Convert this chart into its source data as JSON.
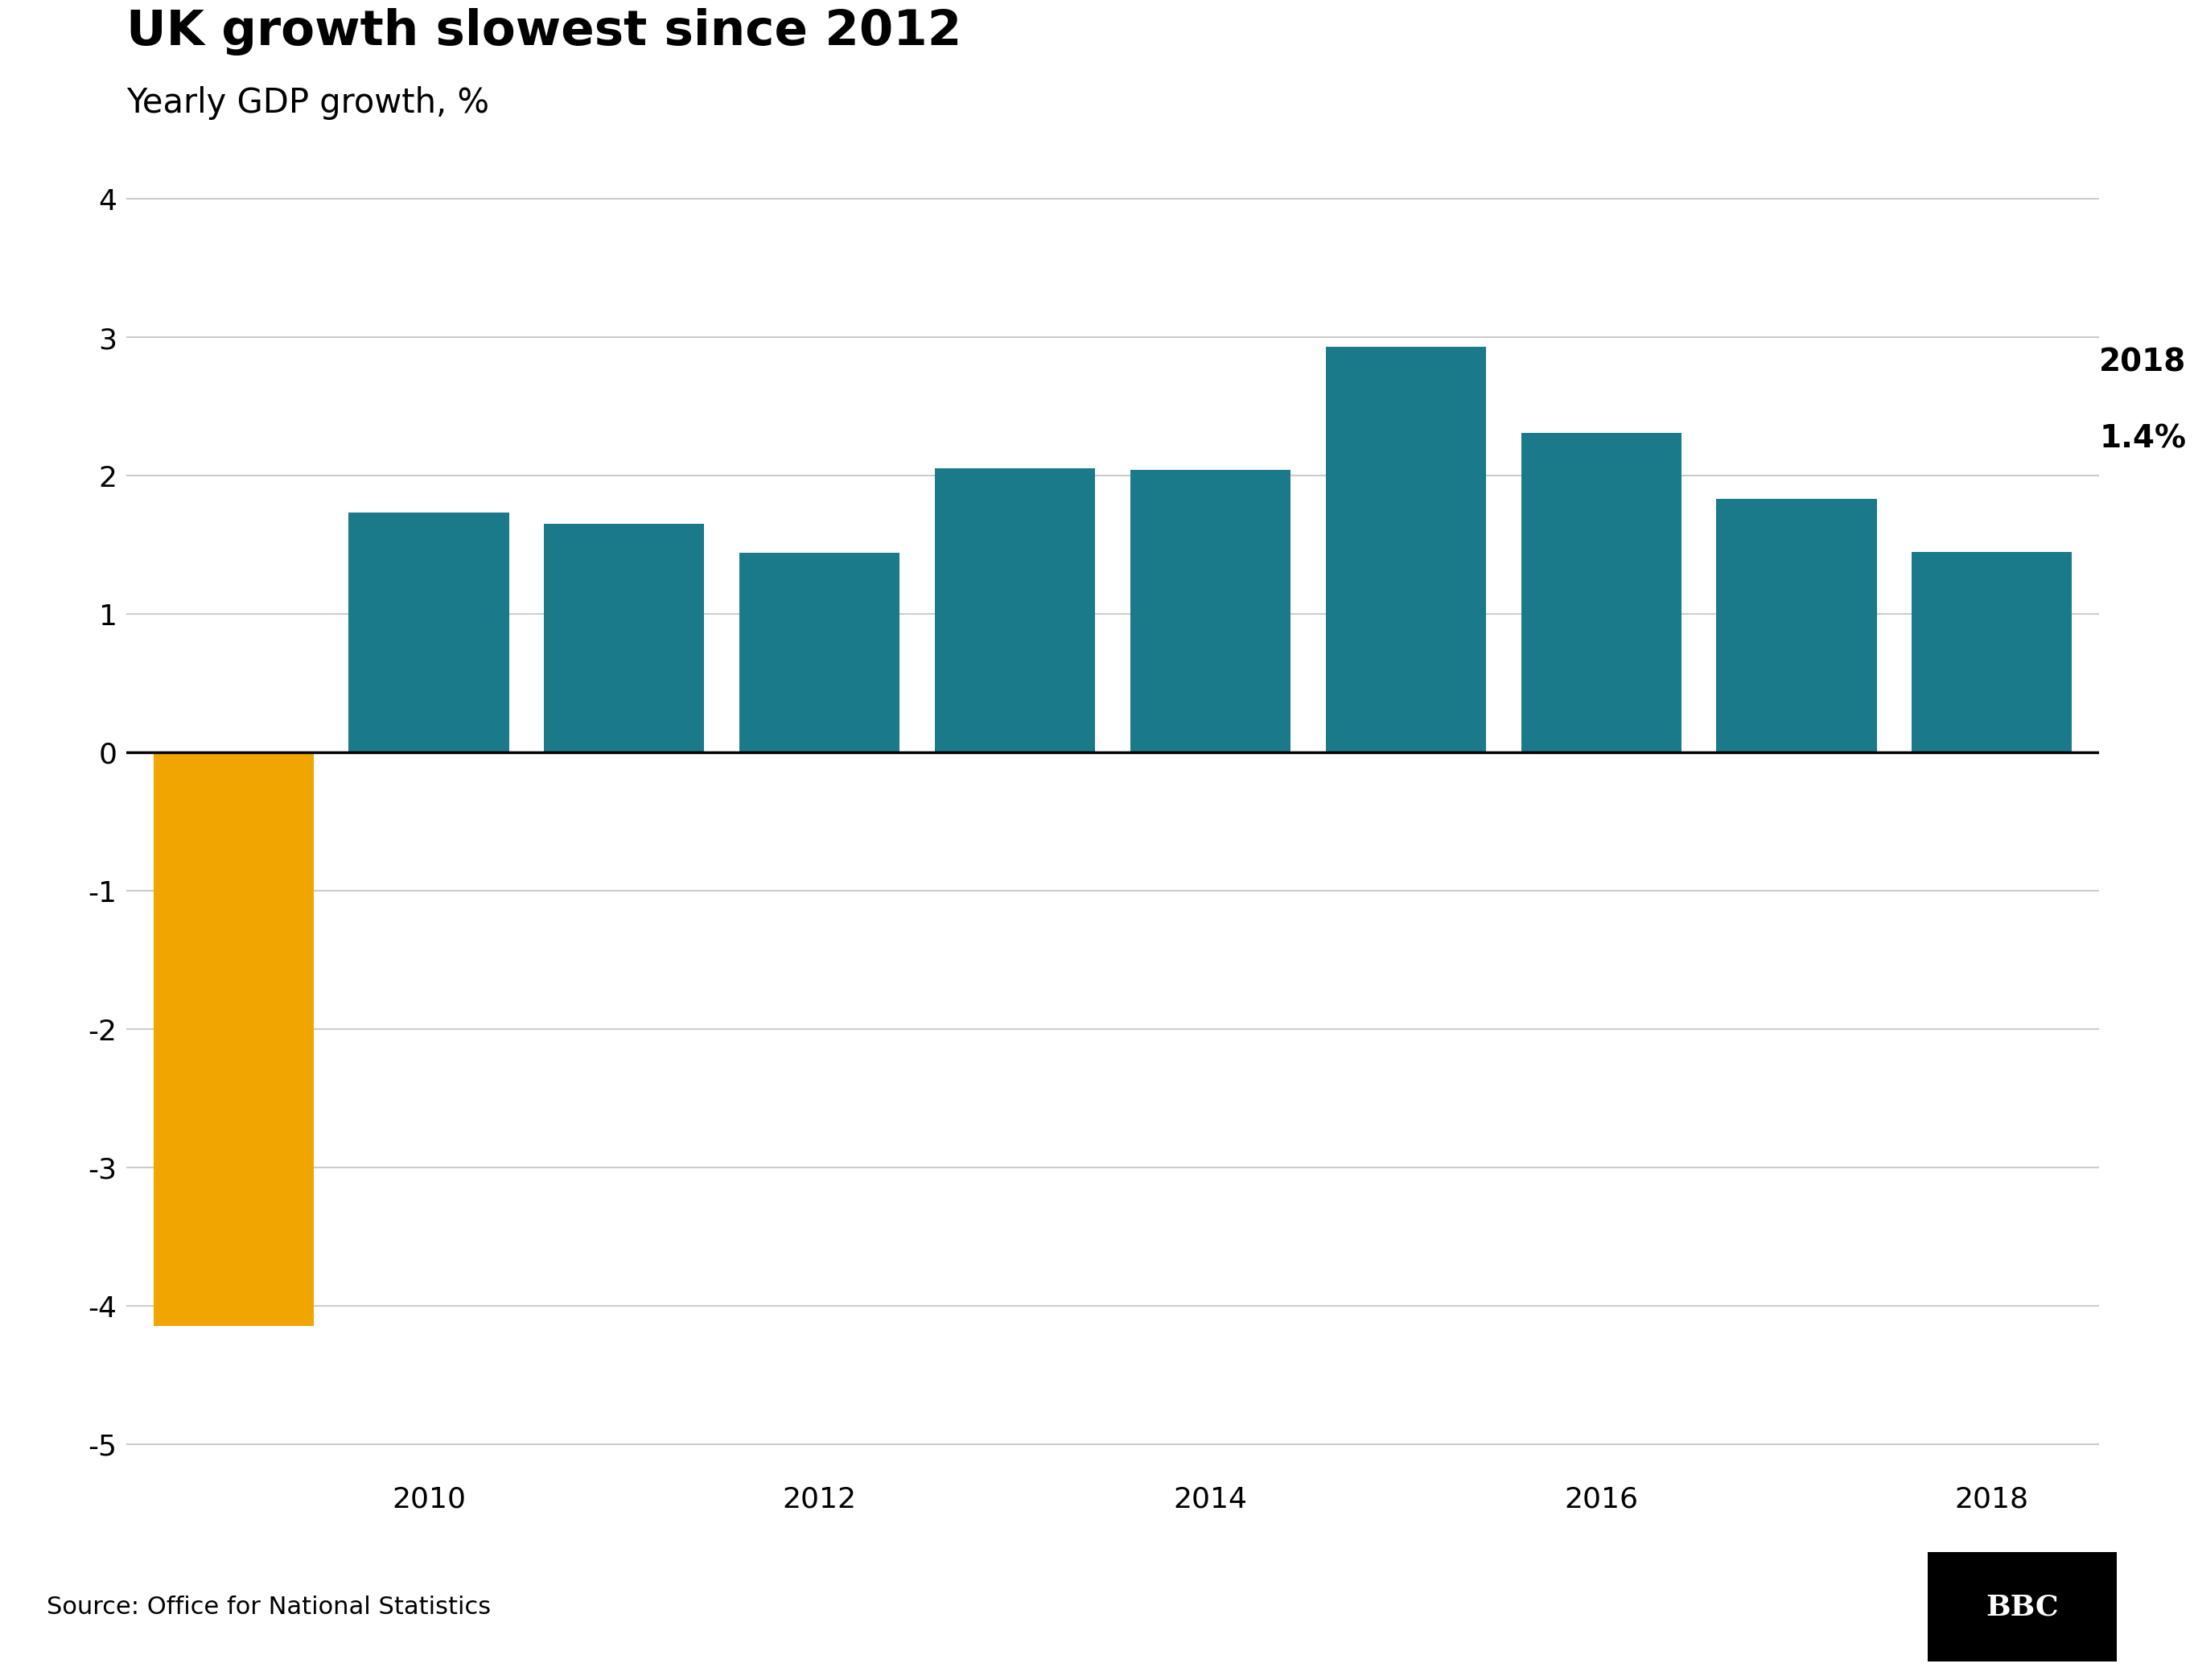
{
  "title": "UK growth slowest since 2012",
  "subtitle": "Yearly GDP growth, %",
  "years": [
    2009,
    2010,
    2011,
    2012,
    2013,
    2014,
    2015,
    2016,
    2017,
    2018
  ],
  "values": [
    -4.15,
    1.73,
    1.65,
    1.44,
    2.05,
    2.04,
    2.93,
    2.31,
    1.83,
    1.45
  ],
  "bar_colors": [
    "#f0a500",
    "#1a7a8a",
    "#1a7a8a",
    "#1a7a8a",
    "#1a7a8a",
    "#1a7a8a",
    "#1a7a8a",
    "#1a7a8a",
    "#1a7a8a",
    "#1a7a8a"
  ],
  "annotation_year": "2018",
  "annotation_value": "1.4%",
  "ylim": [
    -5.2,
    4.5
  ],
  "yticks": [
    -5,
    -4,
    -3,
    -2,
    -1,
    0,
    1,
    2,
    3,
    4
  ],
  "xtick_years": [
    2010,
    2012,
    2014,
    2016,
    2018
  ],
  "xtick_labels": [
    "2010",
    "2012",
    "2014",
    "2016",
    "2018"
  ],
  "source_text": "Source: Office for National Statistics",
  "bbc_logo": "BBC",
  "background_color": "#ffffff",
  "grid_color": "#cccccc",
  "bar_width": 0.82,
  "title_fontsize": 44,
  "subtitle_fontsize": 30,
  "tick_fontsize": 26,
  "source_fontsize": 22,
  "annotation_fontsize": 28,
  "title_color": "#000000",
  "subtitle_color": "#000000",
  "tick_color": "#000000",
  "source_color": "#000000",
  "footer_line_color": "#bbbbbb",
  "footer_bg": "#ffffff"
}
